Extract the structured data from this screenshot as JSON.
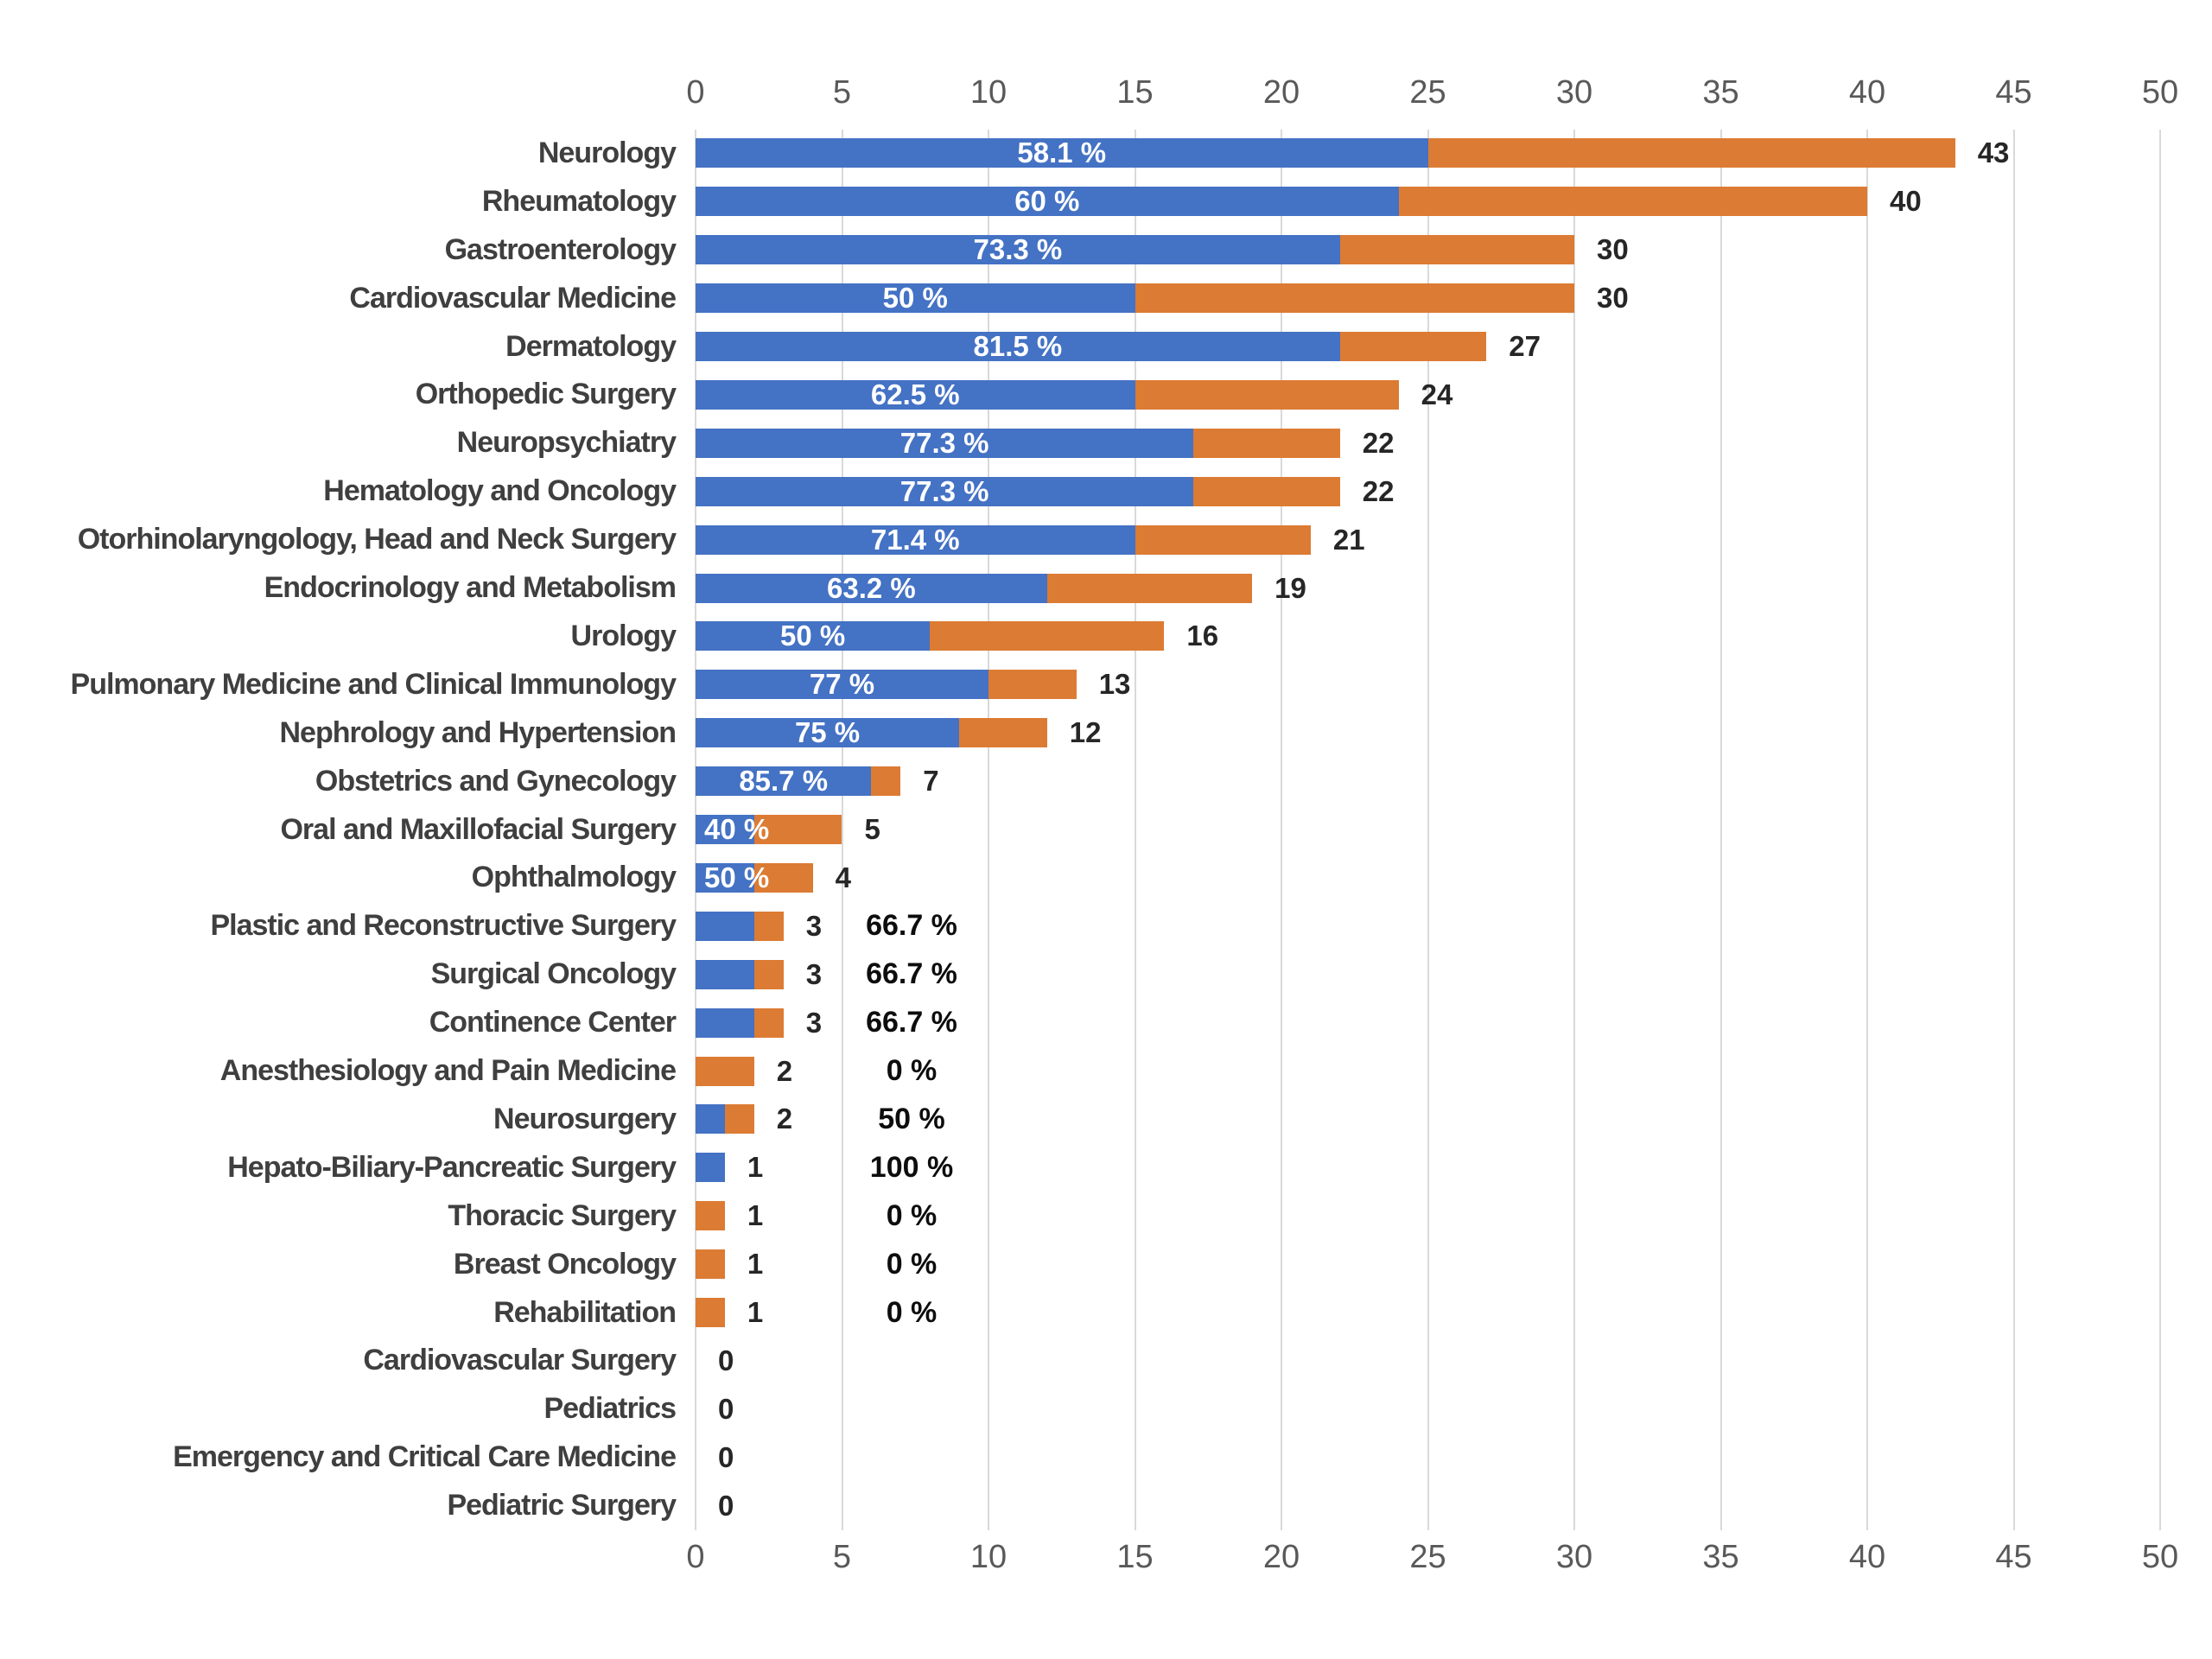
{
  "chart_data": {
    "type": "bar",
    "variant": "horizontal-stacked",
    "title": "",
    "xlabel": "",
    "ylabel": "",
    "xlim": [
      0,
      50
    ],
    "x_ticks": [
      0,
      5,
      10,
      15,
      20,
      25,
      30,
      35,
      40,
      45,
      50
    ],
    "axis_top": true,
    "axis_bottom": true,
    "grid": true,
    "legend": false,
    "colors": {
      "blue_segment": "#4472C4",
      "orange_segment": "#DC7B33",
      "gridline": "#D9D9D9",
      "tick_text": "#595959",
      "category_text": "#3F3F3F",
      "total_text": "#262626",
      "side_pct_text": "#0D0D0D",
      "inbar_pct_text": "#FFFFFF",
      "background": "#FFFFFF"
    },
    "rows": [
      {
        "label": "Neurology",
        "blue": 25,
        "orange": 18,
        "total": 43,
        "total_label": "43",
        "pct_label": "58.1 %",
        "pct_placement": "inside"
      },
      {
        "label": "Rheumatology",
        "blue": 24,
        "orange": 16,
        "total": 40,
        "total_label": "40",
        "pct_label": "60 %",
        "pct_placement": "inside"
      },
      {
        "label": "Gastroenterology",
        "blue": 22,
        "orange": 8,
        "total": 30,
        "total_label": "30",
        "pct_label": "73.3 %",
        "pct_placement": "inside"
      },
      {
        "label": "Cardiovascular Medicine",
        "blue": 15,
        "orange": 15,
        "total": 30,
        "total_label": "30",
        "pct_label": "50 %",
        "pct_placement": "inside"
      },
      {
        "label": "Dermatology",
        "blue": 22,
        "orange": 5,
        "total": 27,
        "total_label": "27",
        "pct_label": "81.5 %",
        "pct_placement": "inside"
      },
      {
        "label": "Orthopedic Surgery",
        "blue": 15,
        "orange": 9,
        "total": 24,
        "total_label": "24",
        "pct_label": "62.5 %",
        "pct_placement": "inside"
      },
      {
        "label": "Neuropsychiatry",
        "blue": 17,
        "orange": 5,
        "total": 22,
        "total_label": "22",
        "pct_label": "77.3 %",
        "pct_placement": "inside"
      },
      {
        "label": "Hematology and Oncology",
        "blue": 17,
        "orange": 5,
        "total": 22,
        "total_label": "22",
        "pct_label": "77.3 %",
        "pct_placement": "inside"
      },
      {
        "label": "Otorhinolaryngology, Head and Neck Surgery",
        "blue": 15,
        "orange": 6,
        "total": 21,
        "total_label": "21",
        "pct_label": "71.4 %",
        "pct_placement": "inside"
      },
      {
        "label": "Endocrinology and Metabolism",
        "blue": 12,
        "orange": 7,
        "total": 19,
        "total_label": "19",
        "pct_label": "63.2 %",
        "pct_placement": "inside"
      },
      {
        "label": "Urology",
        "blue": 8,
        "orange": 8,
        "total": 16,
        "total_label": "16",
        "pct_label": "50 %",
        "pct_placement": "inside"
      },
      {
        "label": "Pulmonary Medicine and Clinical Immunology",
        "blue": 10,
        "orange": 3,
        "total": 13,
        "total_label": "13",
        "pct_label": "77 %",
        "pct_placement": "inside"
      },
      {
        "label": "Nephrology and Hypertension",
        "blue": 9,
        "orange": 3,
        "total": 12,
        "total_label": "12",
        "pct_label": "75 %",
        "pct_placement": "inside"
      },
      {
        "label": "Obstetrics and Gynecology",
        "blue": 6,
        "orange": 1,
        "total": 7,
        "total_label": "7",
        "pct_label": "85.7 %",
        "pct_placement": "inside"
      },
      {
        "label": "Oral and Maxillofacial Surgery",
        "blue": 2,
        "orange": 3,
        "total": 5,
        "total_label": "5",
        "pct_label": "40 %",
        "pct_placement": "inside-left"
      },
      {
        "label": "Ophthalmology",
        "blue": 2,
        "orange": 2,
        "total": 4,
        "total_label": "4",
        "pct_label": "50 %",
        "pct_placement": "inside-left"
      },
      {
        "label": "Plastic and Reconstructive Surgery",
        "blue": 2,
        "orange": 1,
        "total": 3,
        "total_label": "3",
        "pct_label": "66.7 %",
        "pct_placement": "side"
      },
      {
        "label": "Surgical Oncology",
        "blue": 2,
        "orange": 1,
        "total": 3,
        "total_label": "3",
        "pct_label": "66.7 %",
        "pct_placement": "side"
      },
      {
        "label": "Continence Center",
        "blue": 2,
        "orange": 1,
        "total": 3,
        "total_label": "3",
        "pct_label": "66.7 %",
        "pct_placement": "side"
      },
      {
        "label": "Anesthesiology and Pain Medicine",
        "blue": 0,
        "orange": 2,
        "total": 2,
        "total_label": "2",
        "pct_label": "0 %",
        "pct_placement": "side"
      },
      {
        "label": "Neurosurgery",
        "blue": 1,
        "orange": 1,
        "total": 2,
        "total_label": "2",
        "pct_label": "50 %",
        "pct_placement": "side"
      },
      {
        "label": "Hepato-Biliary-Pancreatic Surgery",
        "blue": 1,
        "orange": 0,
        "total": 1,
        "total_label": "1",
        "pct_label": "100 %",
        "pct_placement": "side"
      },
      {
        "label": "Thoracic Surgery",
        "blue": 0,
        "orange": 1,
        "total": 1,
        "total_label": "1",
        "pct_label": "0 %",
        "pct_placement": "side"
      },
      {
        "label": "Breast Oncology",
        "blue": 0,
        "orange": 1,
        "total": 1,
        "total_label": "1",
        "pct_label": "0 %",
        "pct_placement": "side"
      },
      {
        "label": "Rehabilitation",
        "blue": 0,
        "orange": 1,
        "total": 1,
        "total_label": "1",
        "pct_label": "0 %",
        "pct_placement": "side"
      },
      {
        "label": "Cardiovascular Surgery",
        "blue": 0,
        "orange": 0,
        "total": 0,
        "total_label": "0",
        "pct_label": "",
        "pct_placement": "none"
      },
      {
        "label": "Pediatrics",
        "blue": 0,
        "orange": 0,
        "total": 0,
        "total_label": "0",
        "pct_label": "",
        "pct_placement": "none"
      },
      {
        "label": "Emergency and Critical Care Medicine",
        "blue": 0,
        "orange": 0,
        "total": 0,
        "total_label": "0",
        "pct_label": "",
        "pct_placement": "none"
      },
      {
        "label": "Pediatric Surgery",
        "blue": 0,
        "orange": 0,
        "total": 0,
        "total_label": "0",
        "pct_label": "",
        "pct_placement": "none"
      }
    ]
  }
}
